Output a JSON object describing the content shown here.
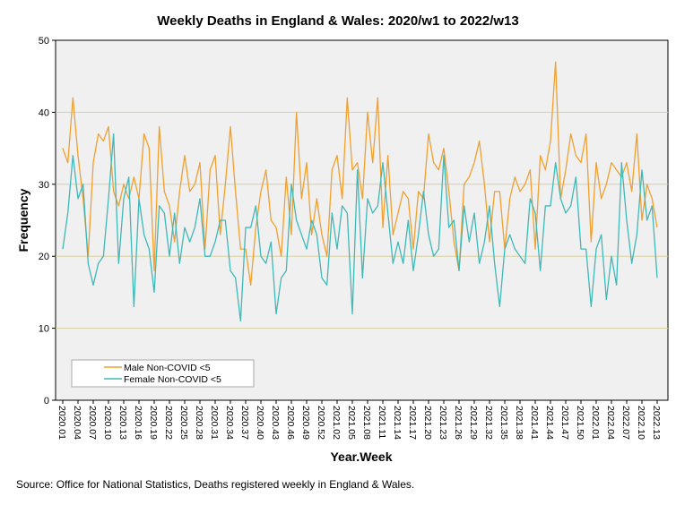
{
  "chart_data": {
    "type": "line",
    "title": "Weekly Deaths in England & Wales: 2020/w1 to 2022/w13",
    "xlabel": "Year.Week",
    "ylabel": "Frequency",
    "ylim": [
      0,
      50
    ],
    "yticks": [
      0,
      10,
      20,
      30,
      40,
      50
    ],
    "grid": "horizontal",
    "legend_position": "bottom-left",
    "background": "#f0f0f0",
    "gridline_color": "#d8d0a0",
    "x_tick_labels": [
      "2020.01",
      "2020.04",
      "2020.07",
      "2020.10",
      "2020.13",
      "2020.16",
      "2020.19",
      "2020.22",
      "2020.25",
      "2020.28",
      "2020.31",
      "2020.34",
      "2020.37",
      "2020.40",
      "2020.43",
      "2020.46",
      "2020.49",
      "2020.52",
      "2021.02",
      "2021.05",
      "2021.08",
      "2021.11",
      "2021.14",
      "2021.17",
      "2021.20",
      "2021.23",
      "2021.26",
      "2021.29",
      "2021.32",
      "2021.35",
      "2021.38",
      "2021.41",
      "2021.44",
      "2021.47",
      "2021.50",
      "2022.01",
      "2022.04",
      "2022.07",
      "2022.10",
      "2022.13"
    ],
    "series": [
      {
        "name": "Male Non-COVID <5",
        "color": "#f0a030",
        "values": [
          35,
          33,
          42,
          34,
          28,
          20,
          33,
          37,
          36,
          38,
          29,
          27,
          30,
          28,
          31,
          28,
          37,
          35,
          18,
          38,
          29,
          27,
          22,
          29,
          34,
          29,
          30,
          33,
          21,
          32,
          34,
          23,
          30,
          38,
          29,
          21,
          21,
          16,
          24,
          29,
          32,
          25,
          24,
          20,
          31,
          23,
          40,
          28,
          33,
          23,
          28,
          23,
          20,
          32,
          34,
          28,
          42,
          32,
          33,
          28,
          40,
          33,
          42,
          24,
          34,
          23,
          26,
          29,
          28,
          21,
          29,
          28,
          37,
          33,
          32,
          35,
          29,
          22,
          18,
          30,
          31,
          33,
          36,
          30,
          22,
          29,
          29,
          21,
          28,
          31,
          29,
          30,
          32,
          21,
          34,
          32,
          36,
          47,
          28,
          32,
          37,
          34,
          33,
          37,
          22,
          33,
          28,
          30,
          33,
          32,
          31,
          33,
          29,
          37,
          25,
          30,
          28,
          24
        ],
        "gridline_note": ""
      },
      {
        "name": "Female Non-COVID <5",
        "color": "#40b8b8",
        "values": [
          21,
          26,
          34,
          28,
          30,
          19,
          16,
          19,
          20,
          28,
          37,
          19,
          28,
          31,
          13,
          28,
          23,
          21,
          15,
          27,
          26,
          20,
          26,
          19,
          24,
          22,
          24,
          28,
          20,
          20,
          22,
          25,
          25,
          18,
          17,
          11,
          24,
          24,
          27,
          20,
          19,
          22,
          12,
          17,
          18,
          30,
          25,
          23,
          21,
          25,
          23,
          17,
          16,
          26,
          21,
          27,
          26,
          12,
          32,
          17,
          28,
          26,
          27,
          33,
          26,
          19,
          22,
          19,
          25,
          18,
          23,
          29,
          23,
          20,
          21,
          34,
          24,
          25,
          18,
          27,
          22,
          26,
          19,
          22,
          27,
          19,
          13,
          21,
          23,
          21,
          20,
          19,
          28,
          26,
          18,
          27,
          27,
          33,
          28,
          26,
          27,
          31,
          21,
          21,
          13,
          21,
          23,
          14,
          20,
          16,
          33,
          25,
          19,
          23,
          32,
          25,
          27,
          17
        ]
      }
    ]
  }
}
